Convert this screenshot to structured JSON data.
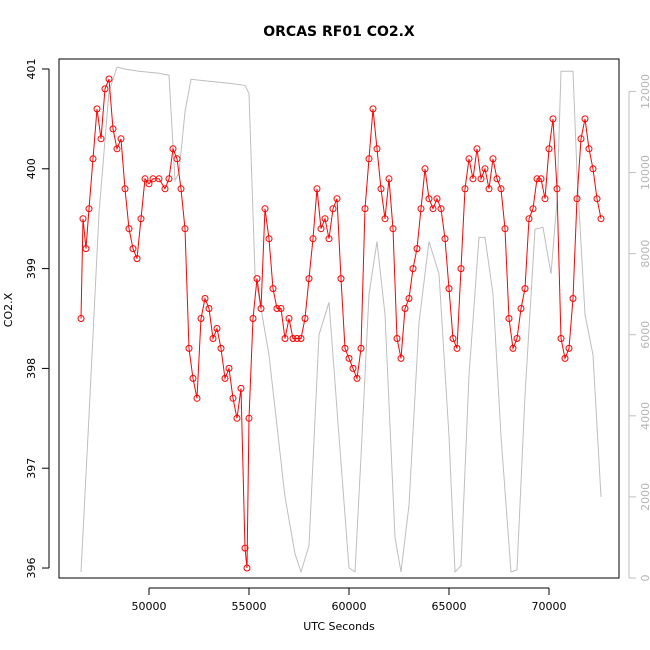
{
  "chart_data": {
    "type": "scatter",
    "title": "ORCAS RF01 CO2.X",
    "xlabel": "UTC Seconds",
    "ylabel": "CO2.X",
    "xlim": [
      45500,
      73500
    ],
    "ylim": [
      395.9,
      401.1
    ],
    "y2lim": [
      0,
      12800
    ],
    "x_ticks": [
      "50000",
      "55000",
      "60000",
      "65000",
      "70000"
    ],
    "y_ticks": [
      "396",
      "397",
      "398",
      "399",
      "400",
      "401"
    ],
    "y2_ticks": [
      "0",
      "2000",
      "4000",
      "6000",
      "8000",
      "10000",
      "12000"
    ],
    "grid": false,
    "legend": "none",
    "colors": {
      "co2": "#ff0000",
      "altitude": "#bebebe"
    },
    "series": [
      {
        "axis": "left",
        "marker": "open-circle",
        "line": true,
        "points": [
          [
            46600,
            398.5
          ],
          [
            46700,
            399.5
          ],
          [
            46850,
            399.2
          ],
          [
            47000,
            399.6
          ],
          [
            47200,
            400.1
          ],
          [
            47400,
            400.6
          ],
          [
            47600,
            400.3
          ],
          [
            47800,
            400.8
          ],
          [
            48000,
            400.9
          ],
          [
            48200,
            400.4
          ],
          [
            48400,
            400.2
          ],
          [
            48600,
            400.3
          ],
          [
            48800,
            399.8
          ],
          [
            49000,
            399.4
          ],
          [
            49200,
            399.2
          ],
          [
            49400,
            399.1
          ],
          [
            49600,
            399.5
          ],
          [
            49800,
            399.9
          ],
          [
            50000,
            399.85
          ],
          [
            50200,
            399.9
          ],
          [
            50500,
            399.9
          ],
          [
            50800,
            399.8
          ],
          [
            51000,
            399.9
          ],
          [
            51200,
            400.2
          ],
          [
            51400,
            400.1
          ],
          [
            51600,
            399.8
          ],
          [
            51800,
            399.4
          ],
          [
            52000,
            398.2
          ],
          [
            52200,
            397.9
          ],
          [
            52400,
            397.7
          ],
          [
            52600,
            398.5
          ],
          [
            52800,
            398.7
          ],
          [
            53000,
            398.6
          ],
          [
            53200,
            398.3
          ],
          [
            53400,
            398.4
          ],
          [
            53600,
            398.2
          ],
          [
            53800,
            397.9
          ],
          [
            54000,
            398.0
          ],
          [
            54200,
            397.7
          ],
          [
            54400,
            397.5
          ],
          [
            54600,
            397.8
          ],
          [
            54800,
            396.2
          ],
          [
            54900,
            396.0
          ],
          [
            55000,
            397.5
          ],
          [
            55200,
            398.5
          ],
          [
            55400,
            398.9
          ],
          [
            55600,
            398.6
          ],
          [
            55800,
            399.6
          ],
          [
            56000,
            399.3
          ],
          [
            56200,
            398.8
          ],
          [
            56400,
            398.6
          ],
          [
            56600,
            398.6
          ],
          [
            56800,
            398.3
          ],
          [
            57000,
            398.5
          ],
          [
            57200,
            398.3
          ],
          [
            57400,
            398.3
          ],
          [
            57600,
            398.3
          ],
          [
            57800,
            398.5
          ],
          [
            58000,
            398.9
          ],
          [
            58200,
            399.3
          ],
          [
            58400,
            399.8
          ],
          [
            58600,
            399.4
          ],
          [
            58800,
            399.5
          ],
          [
            59000,
            399.3
          ],
          [
            59200,
            399.6
          ],
          [
            59400,
            399.7
          ],
          [
            59600,
            398.9
          ],
          [
            59800,
            398.2
          ],
          [
            60000,
            398.1
          ],
          [
            60200,
            398.0
          ],
          [
            60400,
            397.9
          ],
          [
            60600,
            398.2
          ],
          [
            60800,
            399.6
          ],
          [
            61000,
            400.1
          ],
          [
            61200,
            400.6
          ],
          [
            61400,
            400.2
          ],
          [
            61600,
            399.8
          ],
          [
            61800,
            399.5
          ],
          [
            62000,
            399.9
          ],
          [
            62200,
            399.4
          ],
          [
            62400,
            398.3
          ],
          [
            62600,
            398.1
          ],
          [
            62800,
            398.6
          ],
          [
            63000,
            398.7
          ],
          [
            63200,
            399.0
          ],
          [
            63400,
            399.2
          ],
          [
            63600,
            399.6
          ],
          [
            63800,
            400.0
          ],
          [
            64000,
            399.7
          ],
          [
            64200,
            399.6
          ],
          [
            64400,
            399.7
          ],
          [
            64600,
            399.6
          ],
          [
            64800,
            399.3
          ],
          [
            65000,
            398.8
          ],
          [
            65200,
            398.3
          ],
          [
            65400,
            398.2
          ],
          [
            65600,
            399.0
          ],
          [
            65800,
            399.8
          ],
          [
            66000,
            400.1
          ],
          [
            66200,
            399.9
          ],
          [
            66400,
            400.2
          ],
          [
            66600,
            399.9
          ],
          [
            66800,
            400.0
          ],
          [
            67000,
            399.8
          ],
          [
            67200,
            400.1
          ],
          [
            67400,
            399.9
          ],
          [
            67600,
            399.8
          ],
          [
            67800,
            399.4
          ],
          [
            68000,
            398.5
          ],
          [
            68200,
            398.2
          ],
          [
            68400,
            398.3
          ],
          [
            68600,
            398.6
          ],
          [
            68800,
            398.8
          ],
          [
            69000,
            399.5
          ],
          [
            69200,
            399.6
          ],
          [
            69400,
            399.9
          ],
          [
            69600,
            399.9
          ],
          [
            69800,
            399.7
          ],
          [
            70000,
            400.2
          ],
          [
            70200,
            400.5
          ],
          [
            70400,
            399.8
          ],
          [
            70600,
            398.3
          ],
          [
            70800,
            398.1
          ],
          [
            71000,
            398.2
          ],
          [
            71200,
            398.7
          ],
          [
            71400,
            399.7
          ],
          [
            71600,
            400.3
          ],
          [
            71800,
            400.5
          ],
          [
            72000,
            400.2
          ],
          [
            72200,
            400.0
          ],
          [
            72400,
            399.7
          ],
          [
            72600,
            399.5
          ]
        ]
      },
      {
        "axis": "right",
        "marker": "none",
        "line": true,
        "points": [
          [
            46600,
            150
          ],
          [
            47000,
            4000
          ],
          [
            47500,
            9000
          ],
          [
            48000,
            12000
          ],
          [
            48400,
            12600
          ],
          [
            48800,
            12550
          ],
          [
            49500,
            12500
          ],
          [
            50500,
            12450
          ],
          [
            51000,
            12400
          ],
          [
            51300,
            9800
          ],
          [
            51500,
            10000
          ],
          [
            51800,
            11500
          ],
          [
            52100,
            12300
          ],
          [
            53000,
            12250
          ],
          [
            54000,
            12200
          ],
          [
            54800,
            12150
          ],
          [
            55000,
            11950
          ],
          [
            55300,
            7500
          ],
          [
            56000,
            5500
          ],
          [
            56800,
            2000
          ],
          [
            57300,
            600
          ],
          [
            57600,
            150
          ],
          [
            58000,
            800
          ],
          [
            58500,
            6000
          ],
          [
            59000,
            6800
          ],
          [
            59500,
            3500
          ],
          [
            60000,
            250
          ],
          [
            60300,
            150
          ],
          [
            60600,
            3000
          ],
          [
            61000,
            7000
          ],
          [
            61400,
            8300
          ],
          [
            61800,
            6500
          ],
          [
            62300,
            1000
          ],
          [
            62600,
            150
          ],
          [
            63000,
            1800
          ],
          [
            63500,
            6300
          ],
          [
            64000,
            8300
          ],
          [
            64500,
            7500
          ],
          [
            65000,
            3500
          ],
          [
            65300,
            150
          ],
          [
            65600,
            300
          ],
          [
            66000,
            5000
          ],
          [
            66500,
            8400
          ],
          [
            66800,
            8400
          ],
          [
            67200,
            7000
          ],
          [
            67600,
            3500
          ],
          [
            68100,
            150
          ],
          [
            68400,
            200
          ],
          [
            68800,
            4500
          ],
          [
            69300,
            8600
          ],
          [
            69700,
            8650
          ],
          [
            70100,
            7500
          ],
          [
            70400,
            9300
          ],
          [
            70600,
            12500
          ],
          [
            71200,
            12500
          ],
          [
            71400,
            10000
          ],
          [
            71800,
            6500
          ],
          [
            72200,
            5500
          ],
          [
            72600,
            2000
          ]
        ]
      }
    ]
  }
}
